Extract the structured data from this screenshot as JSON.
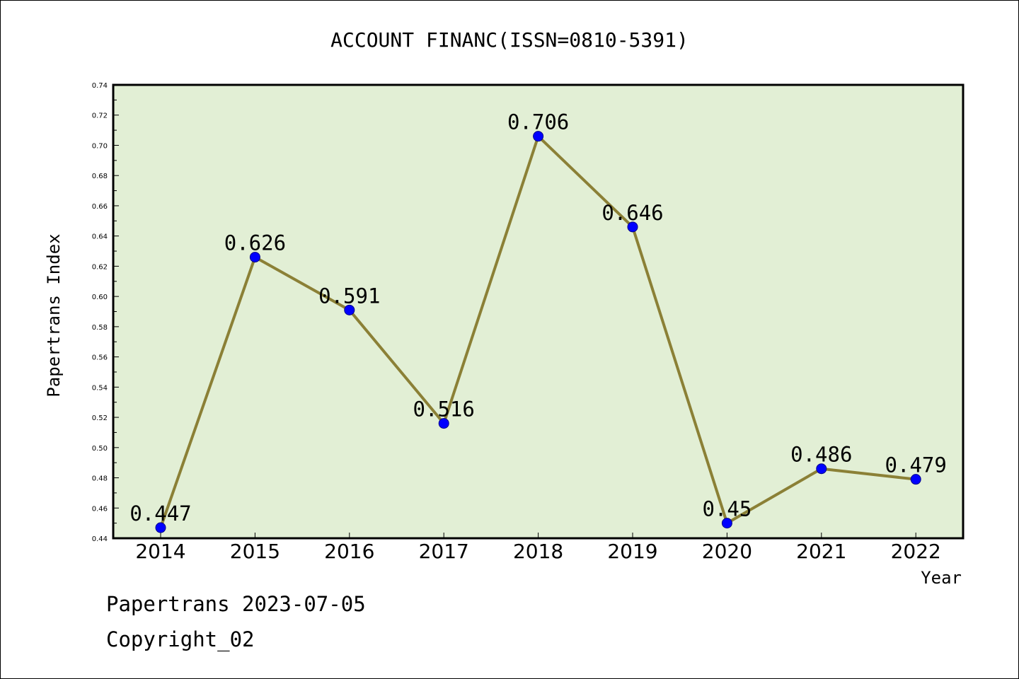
{
  "chart_data": {
    "type": "line",
    "title": "ACCOUNT FINANC(ISSN=0810-5391)",
    "xlabel": "Year",
    "ylabel": "Papertrans Index",
    "categories": [
      "2014",
      "2015",
      "2016",
      "2017",
      "2018",
      "2019",
      "2020",
      "2021",
      "2022"
    ],
    "values": [
      0.447,
      0.626,
      0.591,
      0.516,
      0.706,
      0.646,
      0.45,
      0.486,
      0.479
    ],
    "data_labels": [
      "0.447",
      "0.626",
      "0.591",
      "0.516",
      "0.706",
      "0.646",
      "0.45",
      "0.486",
      "0.479"
    ],
    "ylim": [
      0.44,
      0.74
    ],
    "yticks": [
      "0.44",
      "0.46",
      "0.48",
      "0.50",
      "0.52",
      "0.54",
      "0.56",
      "0.58",
      "0.60",
      "0.62",
      "0.64",
      "0.66",
      "0.68",
      "0.70",
      "0.72",
      "0.74"
    ],
    "grid": false,
    "colors": {
      "plot_background": "#e2efd5",
      "line": "#8b8036",
      "marker": "#0000ff"
    }
  },
  "footer": {
    "line1": "Papertrans 2023-07-05",
    "line2": "Copyright_02"
  }
}
